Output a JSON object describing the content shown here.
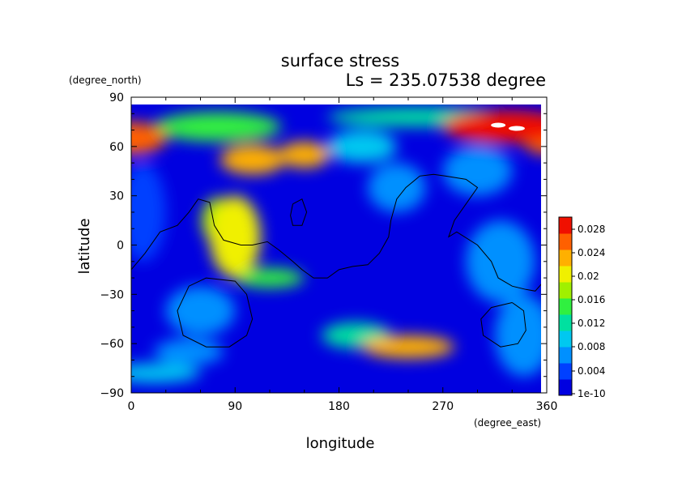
{
  "chart_data": {
    "type": "heatmap",
    "title": "surface stress",
    "subtitle": "Ls = 235.07538 degree",
    "xlabel": "longitude",
    "ylabel": "latitude",
    "x_units": "(degree_east)",
    "y_units": "(degree_north)",
    "xlim": [
      0,
      360
    ],
    "ylim": [
      -90,
      90
    ],
    "x_ticks": [
      "0",
      "90",
      "180",
      "270",
      "360"
    ],
    "y_ticks": [
      "90",
      "60",
      "30",
      "0",
      "−30",
      "−60",
      "−90"
    ],
    "colorbar": {
      "ticks": [
        "0.028",
        "0.024",
        "0.02",
        "0.016",
        "0.012",
        "0.008",
        "0.004",
        "1e-10"
      ],
      "min": 0,
      "max": 0.03,
      "colors": [
        "#0000e0",
        "#0040ff",
        "#0090ff",
        "#00c8f0",
        "#00e0a0",
        "#30f040",
        "#a0f000",
        "#f0f000",
        "#ffb000",
        "#ff6000",
        "#f01000"
      ]
    },
    "blobs": [
      {
        "lon": 0,
        "lat": 65,
        "rlon": 30,
        "rlat": 10,
        "value": 0.026
      },
      {
        "lon": 360,
        "lat": 65,
        "rlon": 22,
        "rlat": 10,
        "value": 0.026
      },
      {
        "lon": 325,
        "lat": 72,
        "rlon": 55,
        "rlat": 10,
        "value": 0.028
      },
      {
        "lon": 250,
        "lat": 78,
        "rlon": 80,
        "rlat": 6,
        "value": 0.012
      },
      {
        "lon": 105,
        "lat": 52,
        "rlon": 28,
        "rlat": 9,
        "value": 0.024
      },
      {
        "lon": 150,
        "lat": 55,
        "rlon": 22,
        "rlat": 8,
        "value": 0.024
      },
      {
        "lon": 75,
        "lat": 72,
        "rlon": 55,
        "rlat": 9,
        "value": 0.014
      },
      {
        "lon": 90,
        "lat": 5,
        "rlon": 22,
        "rlat": 25,
        "value": 0.02
      },
      {
        "lon": 75,
        "lat": 15,
        "rlon": 14,
        "rlat": 14,
        "value": 0.018
      },
      {
        "lon": 120,
        "lat": -20,
        "rlon": 30,
        "rlat": 6,
        "value": 0.016
      },
      {
        "lon": 240,
        "lat": -62,
        "rlon": 40,
        "rlat": 7,
        "value": 0.022
      },
      {
        "lon": 195,
        "lat": -55,
        "rlon": 30,
        "rlat": 8,
        "value": 0.012
      },
      {
        "lon": 50,
        "lat": -65,
        "rlon": 30,
        "rlat": 8,
        "value": 0.008
      },
      {
        "lon": 20,
        "lat": -78,
        "rlon": 40,
        "rlat": 6,
        "value": 0.01
      },
      {
        "lon": 300,
        "lat": 45,
        "rlon": 30,
        "rlat": 15,
        "value": 0.008
      },
      {
        "lon": 230,
        "lat": 35,
        "rlon": 25,
        "rlat": 15,
        "value": 0.006
      },
      {
        "lon": 10,
        "lat": 20,
        "rlon": 20,
        "rlat": 30,
        "value": 0.005
      },
      {
        "lon": 320,
        "lat": -10,
        "rlon": 30,
        "rlat": 25,
        "value": 0.006
      },
      {
        "lon": 340,
        "lat": -55,
        "rlon": 25,
        "rlat": 25,
        "value": 0.008
      },
      {
        "lon": 200,
        "lat": 60,
        "rlon": 30,
        "rlat": 10,
        "value": 0.01
      },
      {
        "lon": 60,
        "lat": -40,
        "rlon": 30,
        "rlat": 15,
        "value": 0.006
      }
    ],
    "contours": [
      {
        "name": "coast-tharsis",
        "points": [
          [
            0,
            -15
          ],
          [
            12,
            -5
          ],
          [
            25,
            8
          ],
          [
            40,
            12
          ],
          [
            50,
            20
          ],
          [
            58,
            28
          ],
          [
            68,
            26
          ],
          [
            72,
            12
          ],
          [
            80,
            3
          ],
          [
            95,
            0
          ],
          [
            105,
            0
          ],
          [
            118,
            2
          ],
          [
            128,
            -3
          ],
          [
            140,
            -10
          ],
          [
            148,
            -15
          ],
          [
            158,
            -20
          ],
          [
            170,
            -20
          ],
          [
            180,
            -15
          ],
          [
            192,
            -13
          ],
          [
            205,
            -12
          ],
          [
            215,
            -5
          ],
          [
            223,
            5
          ],
          [
            225,
            15
          ],
          [
            230,
            28
          ],
          [
            238,
            35
          ],
          [
            250,
            42
          ],
          [
            262,
            43
          ],
          [
            272,
            42
          ],
          [
            290,
            40
          ],
          [
            300,
            35
          ],
          [
            290,
            25
          ],
          [
            280,
            15
          ],
          [
            275,
            5
          ],
          [
            282,
            8
          ],
          [
            300,
            0
          ],
          [
            312,
            -10
          ],
          [
            318,
            -20
          ],
          [
            330,
            -25
          ],
          [
            342,
            -27
          ],
          [
            350,
            -28
          ],
          [
            360,
            -20
          ]
        ]
      },
      {
        "name": "basin-argyre",
        "points": [
          [
            65,
            -20
          ],
          [
            90,
            -22
          ],
          [
            100,
            -30
          ],
          [
            105,
            -45
          ],
          [
            100,
            -55
          ],
          [
            85,
            -62
          ],
          [
            65,
            -62
          ],
          [
            45,
            -55
          ],
          [
            40,
            -40
          ],
          [
            50,
            -25
          ],
          [
            65,
            -20
          ]
        ]
      },
      {
        "name": "basin-hellas-east",
        "points": [
          [
            330,
            -35
          ],
          [
            340,
            -40
          ],
          [
            342,
            -52
          ],
          [
            335,
            -60
          ],
          [
            320,
            -62
          ],
          [
            305,
            -55
          ],
          [
            303,
            -45
          ],
          [
            312,
            -38
          ],
          [
            330,
            -35
          ]
        ]
      },
      {
        "name": "crater-small",
        "points": [
          [
            140,
            25
          ],
          [
            148,
            28
          ],
          [
            152,
            20
          ],
          [
            148,
            12
          ],
          [
            140,
            12
          ],
          [
            138,
            18
          ],
          [
            140,
            25
          ]
        ]
      }
    ]
  }
}
